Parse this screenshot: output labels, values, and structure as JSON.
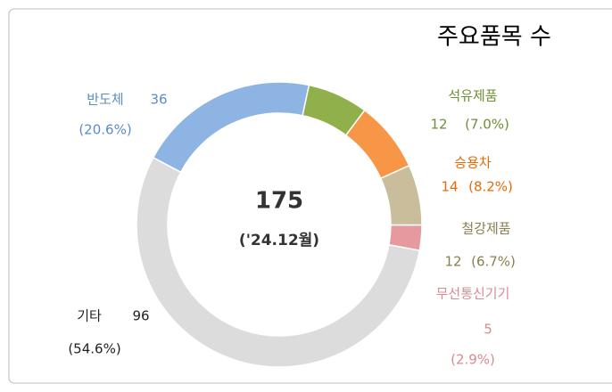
{
  "chart_data": {
    "type": "donut",
    "title": "주요품목 수",
    "center_value": 175,
    "center_label": "('24.12월)",
    "categories": [
      "반도체",
      "석유제품",
      "승용차",
      "철강제품",
      "무선통신기기",
      "기타"
    ],
    "values": [
      36,
      12,
      14,
      12,
      5,
      96
    ],
    "share_labels": [
      "(20.6%)",
      "(7.0%)",
      "(8.2%)",
      "(6.7%)",
      "(2.9%)",
      "(54.6%)"
    ],
    "colors": [
      "#8db4e2",
      "#8fb04a",
      "#f79646",
      "#c9bd9b",
      "#e59aa0",
      "#dcdcdc"
    ]
  }
}
